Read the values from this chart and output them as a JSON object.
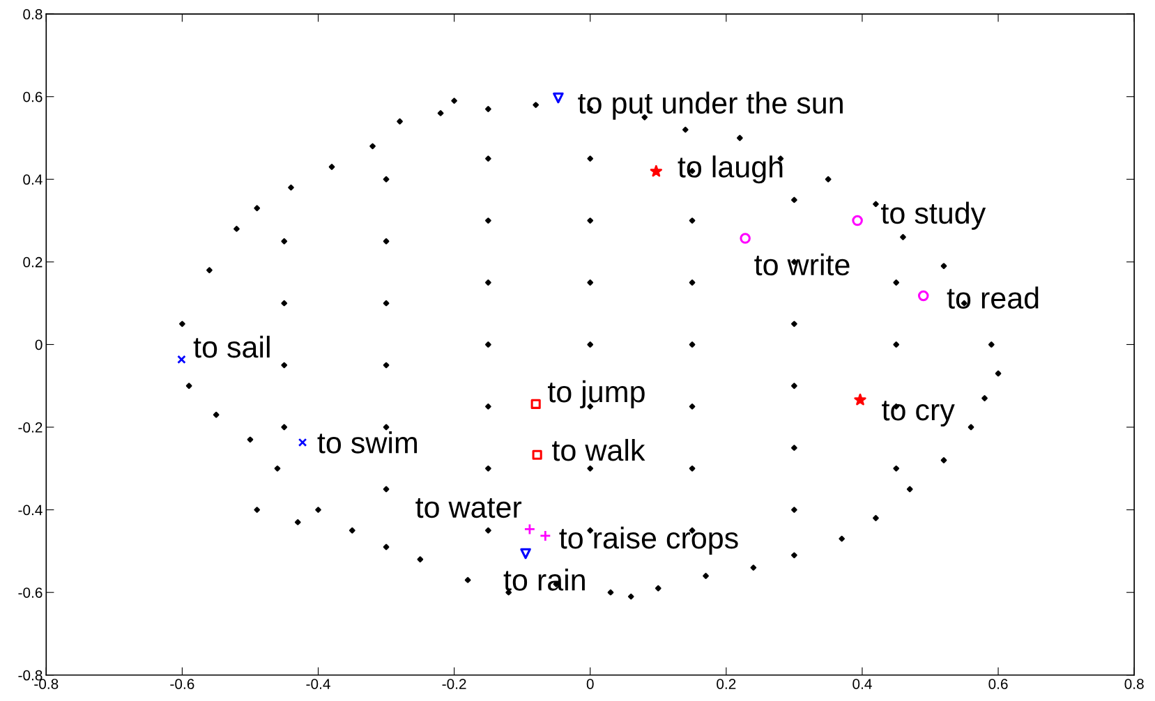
{
  "chart_data": {
    "type": "scatter",
    "xlim": [
      -0.8,
      0.8
    ],
    "ylim": [
      -0.8,
      0.8
    ],
    "xticks": [
      -0.8,
      -0.6,
      -0.4,
      -0.2,
      0,
      0.2,
      0.4,
      0.6,
      0.8
    ],
    "yticks": [
      -0.8,
      -0.6,
      -0.4,
      -0.2,
      0,
      0.2,
      0.4,
      0.6,
      0.8
    ],
    "grid": false,
    "series": [
      {
        "color": "#000000",
        "marker": "diamond",
        "x": [
          -0.6,
          -0.59,
          -0.56,
          -0.55,
          -0.52,
          -0.5,
          -0.49,
          -0.46,
          -0.44,
          -0.4,
          -0.38,
          -0.35,
          -0.32,
          -0.3,
          -0.28,
          -0.25,
          -0.22,
          -0.2,
          -0.18,
          -0.15,
          -0.12,
          -0.08,
          -0.05,
          0.0,
          0.03,
          0.06,
          0.08,
          0.1,
          0.14,
          0.17,
          0.22,
          0.24,
          0.28,
          0.3,
          0.35,
          0.37,
          0.42,
          0.42,
          0.46,
          0.47,
          0.52,
          0.52,
          0.55,
          0.56,
          0.59,
          0.6,
          0.58,
          -0.49,
          -0.43,
          -0.45,
          -0.45,
          -0.45,
          -0.45,
          -0.3,
          -0.3,
          -0.3,
          -0.3,
          -0.3,
          -0.3,
          -0.15,
          -0.15,
          -0.15,
          -0.15,
          -0.15,
          -0.15,
          -0.15,
          0.0,
          0.0,
          0.0,
          0.0,
          0.0,
          0.0,
          0.0,
          0.15,
          0.15,
          0.15,
          0.15,
          0.15,
          0.15,
          0.15,
          0.3,
          0.3,
          0.3,
          0.3,
          0.3,
          0.3,
          0.45,
          0.45,
          0.45,
          0.45
        ],
        "values": [
          0.05,
          -0.1,
          0.18,
          -0.17,
          0.28,
          -0.23,
          0.33,
          -0.3,
          0.38,
          -0.4,
          0.43,
          -0.45,
          0.48,
          -0.49,
          0.54,
          -0.52,
          0.56,
          0.59,
          -0.57,
          0.57,
          -0.6,
          0.58,
          -0.58,
          0.57,
          -0.6,
          -0.61,
          0.55,
          -0.59,
          0.52,
          -0.56,
          0.5,
          -0.54,
          0.45,
          -0.51,
          0.4,
          -0.47,
          0.34,
          -0.42,
          0.26,
          -0.35,
          0.19,
          -0.28,
          0.1,
          -0.2,
          0.0,
          -0.07,
          -0.13,
          -0.4,
          -0.43,
          0.25,
          0.1,
          -0.05,
          -0.2,
          0.4,
          0.25,
          0.1,
          -0.05,
          -0.2,
          -0.35,
          0.45,
          0.3,
          0.15,
          0.0,
          -0.15,
          -0.3,
          -0.45,
          0.45,
          0.3,
          0.15,
          0.0,
          -0.15,
          -0.3,
          -0.45,
          0.42,
          0.3,
          0.15,
          0.0,
          -0.15,
          -0.3,
          -0.45,
          0.35,
          0.2,
          0.05,
          -0.1,
          -0.25,
          -0.4,
          0.15,
          0.0,
          -0.15,
          -0.3
        ]
      },
      {
        "color": "#0000ff",
        "marker": "triangle",
        "x": [
          -0.047,
          -0.095
        ],
        "values": [
          0.597,
          -0.506
        ]
      },
      {
        "color": "#ff0000",
        "marker": "star",
        "x": [
          0.097,
          0.397
        ],
        "values": [
          0.419,
          -0.134
        ]
      },
      {
        "color": "#ff00ff",
        "marker": "circle",
        "x": [
          0.393,
          0.228,
          0.49
        ],
        "values": [
          0.3,
          0.257,
          0.118
        ]
      },
      {
        "color": "#0000ff",
        "marker": "cross",
        "x": [
          -0.601,
          -0.423
        ],
        "values": [
          -0.036,
          -0.237
        ]
      },
      {
        "color": "#ff0000",
        "marker": "square",
        "x": [
          -0.08,
          -0.078
        ],
        "values": [
          -0.144,
          -0.267
        ]
      },
      {
        "color": "#ff00ff",
        "marker": "plus",
        "x": [
          -0.089,
          -0.066
        ],
        "values": [
          -0.447,
          -0.463
        ]
      }
    ],
    "annotations": [
      {
        "text": "to put under the sun",
        "x": -0.047,
        "y": 0.597
      },
      {
        "text": "to laugh",
        "x": 0.097,
        "y": 0.419
      },
      {
        "text": "to study",
        "x": 0.393,
        "y": 0.3
      },
      {
        "text": "to write",
        "x": 0.228,
        "y": 0.257
      },
      {
        "text": "to read",
        "x": 0.49,
        "y": 0.118
      },
      {
        "text": "to sail",
        "x": -0.601,
        "y": -0.036
      },
      {
        "text": "to jump",
        "x": -0.08,
        "y": -0.144
      },
      {
        "text": "to cry",
        "x": 0.397,
        "y": -0.134
      },
      {
        "text": "to swim",
        "x": -0.423,
        "y": -0.237
      },
      {
        "text": "to walk",
        "x": -0.078,
        "y": -0.267
      },
      {
        "text": "to water",
        "x": -0.089,
        "y": -0.447
      },
      {
        "text": "to raise crops",
        "x": -0.066,
        "y": -0.463
      },
      {
        "text": "to rain",
        "x": -0.095,
        "y": -0.506
      }
    ]
  }
}
